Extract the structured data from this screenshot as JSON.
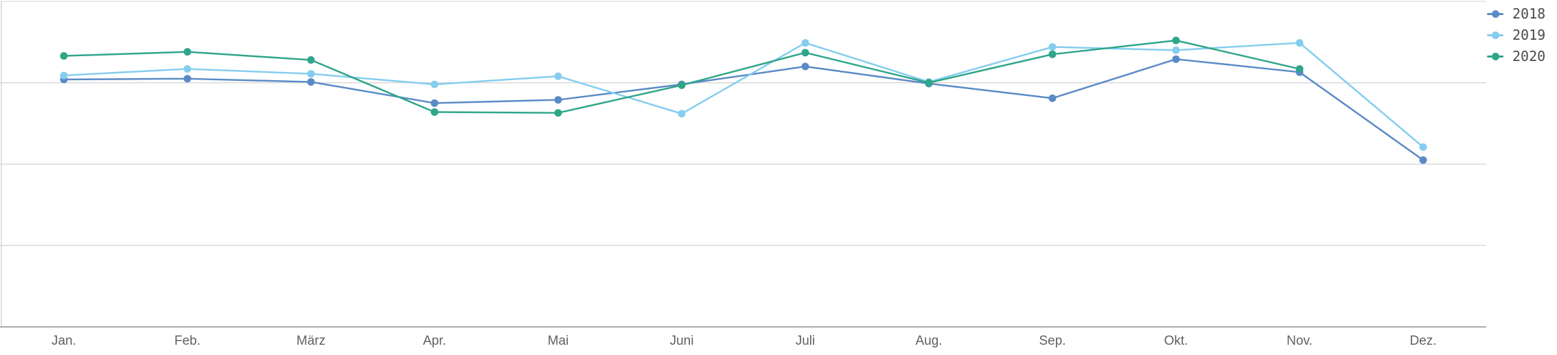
{
  "chart_data": {
    "type": "line",
    "title": "",
    "xlabel": "",
    "ylabel": "",
    "categories": [
      "Jan.",
      "Feb.",
      "März",
      "Apr.",
      "Mai",
      "Juni",
      "Juli",
      "Aug.",
      "Sep.",
      "Okt.",
      "Nov.",
      "Dez."
    ],
    "ylim": [
      0,
      4
    ],
    "gridline_values": [
      1,
      2,
      3,
      4
    ],
    "y_axis_tick_labels_visible": false,
    "grid": "horizontal",
    "legend_position": "top-right",
    "note_units": "y-axis is unlabeled in the source; values are in gridline units (baseline = 0, each gridline = 1)",
    "series": [
      {
        "name": "2018",
        "color": "#5a8ac6",
        "values": [
          3.04,
          3.05,
          3.01,
          2.75,
          2.79,
          2.98,
          3.2,
          2.99,
          2.81,
          3.29,
          3.13,
          2.05
        ]
      },
      {
        "name": "2019",
        "color": "#85cdee",
        "values": [
          3.09,
          3.17,
          3.11,
          2.98,
          3.08,
          2.62,
          3.49,
          3.01,
          3.44,
          3.4,
          3.49,
          2.21
        ]
      },
      {
        "name": "2020",
        "color": "#2fa58a",
        "values": [
          3.33,
          3.38,
          3.28,
          2.64,
          2.63,
          2.97,
          3.37,
          3.0,
          3.35,
          3.52,
          3.17,
          null
        ]
      }
    ]
  },
  "colors": {
    "background": "#ffffff",
    "gridline": "#d9d9d9",
    "top_border": "#e4e4e4",
    "left_axis": "#d6d6d6",
    "baseline": "#ababab",
    "x_label_text": "#606060",
    "legend_text": "#4a4a4a"
  }
}
